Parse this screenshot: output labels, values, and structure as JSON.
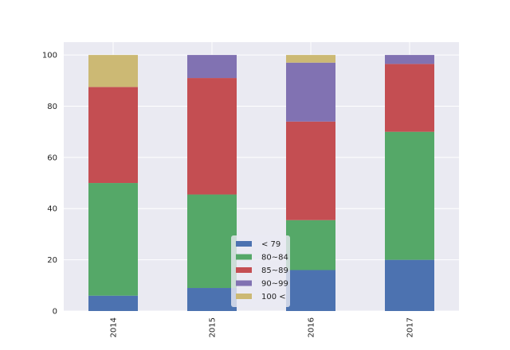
{
  "chart_data": {
    "type": "bar",
    "stacked": true,
    "categories": [
      "2014",
      "2015",
      "2016",
      "2017"
    ],
    "series": [
      {
        "name": "< 79",
        "values": [
          6,
          9,
          16,
          20
        ],
        "color": "#4c72b0"
      },
      {
        "name": "80~84",
        "values": [
          44,
          36.5,
          19.5,
          50
        ],
        "color": "#55a868"
      },
      {
        "name": "85~89",
        "values": [
          37.5,
          45.5,
          38.5,
          26.5
        ],
        "color": "#c44e52"
      },
      {
        "name": "90~99",
        "values": [
          0,
          9,
          23,
          3.5
        ],
        "color": "#8172b2"
      },
      {
        "name": "100 <",
        "values": [
          12.5,
          0,
          3,
          0
        ],
        "color": "#ccb974"
      }
    ],
    "ylim": [
      0,
      105
    ],
    "yticks": [
      0,
      20,
      40,
      60,
      80,
      100
    ],
    "title": "",
    "xlabel": "",
    "ylabel": "",
    "grid": true,
    "legend_position": "lower-center",
    "plot_background": "#eaeaf2",
    "grid_color": "#ffffff"
  }
}
